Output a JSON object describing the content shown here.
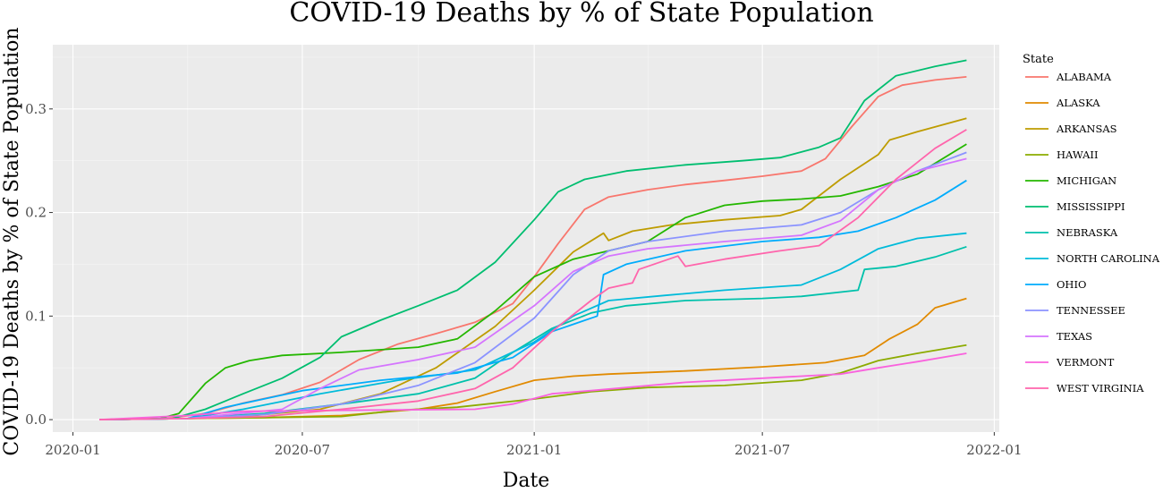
{
  "chart_data": {
    "type": "line",
    "title": "COVID-19 Deaths by % of State Population",
    "xlabel": "Date",
    "ylabel": "COVID-19 Deaths by % of State Population",
    "x_axis_type": "date",
    "xlim": [
      "2019-12-16",
      "2022-01-05"
    ],
    "ylim": [
      -0.012,
      0.362
    ],
    "x_ticks": [
      "2020-01",
      "2020-07",
      "2021-01",
      "2021-07",
      "2022-01"
    ],
    "y_ticks": [
      0.0,
      0.1,
      0.2,
      0.3
    ],
    "y_tick_labels": [
      "0.0",
      "0.1",
      "0.2",
      "0.3"
    ],
    "grid": true,
    "background": "#ebebeb",
    "legend": {
      "title": "State",
      "placement": "right"
    },
    "series": [
      {
        "name": "ALABAMA",
        "color": "#F8766D",
        "points": [
          [
            "2020-01-22",
            0
          ],
          [
            "2020-03-15",
            0.001
          ],
          [
            "2020-04-15",
            0.006
          ],
          [
            "2020-05-15",
            0.016
          ],
          [
            "2020-06-15",
            0.024
          ],
          [
            "2020-07-15",
            0.036
          ],
          [
            "2020-08-15",
            0.058
          ],
          [
            "2020-09-15",
            0.073
          ],
          [
            "2020-10-15",
            0.083
          ],
          [
            "2020-11-15",
            0.094
          ],
          [
            "2020-12-15",
            0.112
          ],
          [
            "2021-01-01",
            0.138
          ],
          [
            "2021-01-20",
            0.17
          ],
          [
            "2021-02-10",
            0.203
          ],
          [
            "2021-03-01",
            0.215
          ],
          [
            "2021-04-01",
            0.222
          ],
          [
            "2021-05-01",
            0.227
          ],
          [
            "2021-06-01",
            0.231
          ],
          [
            "2021-07-01",
            0.235
          ],
          [
            "2021-08-01",
            0.24
          ],
          [
            "2021-08-20",
            0.252
          ],
          [
            "2021-09-10",
            0.283
          ],
          [
            "2021-10-01",
            0.312
          ],
          [
            "2021-10-20",
            0.323
          ],
          [
            "2021-11-15",
            0.328
          ],
          [
            "2021-12-10",
            0.331
          ]
        ]
      },
      {
        "name": "ALASKA",
        "color": "#E18A00",
        "points": [
          [
            "2020-01-22",
            0
          ],
          [
            "2020-04-01",
            0.001
          ],
          [
            "2020-06-01",
            0.002
          ],
          [
            "2020-08-01",
            0.004
          ],
          [
            "2020-10-01",
            0.01
          ],
          [
            "2020-11-01",
            0.016
          ],
          [
            "2020-12-01",
            0.027
          ],
          [
            "2021-01-01",
            0.038
          ],
          [
            "2021-02-01",
            0.042
          ],
          [
            "2021-03-01",
            0.044
          ],
          [
            "2021-05-01",
            0.047
          ],
          [
            "2021-07-01",
            0.051
          ],
          [
            "2021-08-20",
            0.055
          ],
          [
            "2021-09-20",
            0.062
          ],
          [
            "2021-10-10",
            0.078
          ],
          [
            "2021-11-01",
            0.092
          ],
          [
            "2021-11-15",
            0.108
          ],
          [
            "2021-12-10",
            0.117
          ]
        ]
      },
      {
        "name": "ARKANSAS",
        "color": "#BE9C00",
        "points": [
          [
            "2020-01-22",
            0
          ],
          [
            "2020-04-01",
            0.001
          ],
          [
            "2020-05-15",
            0.003
          ],
          [
            "2020-07-15",
            0.01
          ],
          [
            "2020-09-01",
            0.025
          ],
          [
            "2020-10-15",
            0.05
          ],
          [
            "2020-12-01",
            0.09
          ],
          [
            "2021-01-01",
            0.125
          ],
          [
            "2021-02-01",
            0.162
          ],
          [
            "2021-02-25",
            0.18
          ],
          [
            "2021-03-01",
            0.173
          ],
          [
            "2021-03-20",
            0.182
          ],
          [
            "2021-04-20",
            0.188
          ],
          [
            "2021-06-01",
            0.193
          ],
          [
            "2021-07-15",
            0.197
          ],
          [
            "2021-08-01",
            0.203
          ],
          [
            "2021-09-01",
            0.232
          ],
          [
            "2021-10-01",
            0.256
          ],
          [
            "2021-10-10",
            0.27
          ],
          [
            "2021-11-01",
            0.278
          ],
          [
            "2021-12-10",
            0.291
          ]
        ]
      },
      {
        "name": "HAWAII",
        "color": "#8CAB00",
        "points": [
          [
            "2020-01-22",
            0
          ],
          [
            "2020-04-01",
            0.001
          ],
          [
            "2020-06-01",
            0.002
          ],
          [
            "2020-08-01",
            0.003
          ],
          [
            "2020-09-15",
            0.009
          ],
          [
            "2020-11-01",
            0.012
          ],
          [
            "2021-01-01",
            0.02
          ],
          [
            "2021-02-15",
            0.027
          ],
          [
            "2021-04-01",
            0.031
          ],
          [
            "2021-06-01",
            0.033
          ],
          [
            "2021-08-01",
            0.038
          ],
          [
            "2021-09-01",
            0.045
          ],
          [
            "2021-10-01",
            0.057
          ],
          [
            "2021-11-01",
            0.064
          ],
          [
            "2021-12-10",
            0.072
          ]
        ]
      },
      {
        "name": "MICHIGAN",
        "color": "#24B700",
        "points": [
          [
            "2020-01-22",
            0
          ],
          [
            "2020-03-10",
            0.001
          ],
          [
            "2020-03-25",
            0.006
          ],
          [
            "2020-04-15",
            0.035
          ],
          [
            "2020-05-01",
            0.05
          ],
          [
            "2020-05-20",
            0.057
          ],
          [
            "2020-06-15",
            0.062
          ],
          [
            "2020-08-01",
            0.065
          ],
          [
            "2020-10-01",
            0.07
          ],
          [
            "2020-11-01",
            0.078
          ],
          [
            "2020-12-01",
            0.105
          ],
          [
            "2021-01-01",
            0.138
          ],
          [
            "2021-02-01",
            0.155
          ],
          [
            "2021-03-01",
            0.163
          ],
          [
            "2021-04-01",
            0.172
          ],
          [
            "2021-05-01",
            0.195
          ],
          [
            "2021-06-01",
            0.207
          ],
          [
            "2021-07-01",
            0.211
          ],
          [
            "2021-08-01",
            0.213
          ],
          [
            "2021-09-01",
            0.216
          ],
          [
            "2021-10-01",
            0.225
          ],
          [
            "2021-11-01",
            0.237
          ],
          [
            "2021-12-10",
            0.266
          ]
        ]
      },
      {
        "name": "MISSISSIPPI",
        "color": "#00BE70",
        "points": [
          [
            "2020-01-22",
            0
          ],
          [
            "2020-03-20",
            0.001
          ],
          [
            "2020-04-15",
            0.01
          ],
          [
            "2020-05-15",
            0.025
          ],
          [
            "2020-06-15",
            0.04
          ],
          [
            "2020-07-15",
            0.06
          ],
          [
            "2020-08-01",
            0.08
          ],
          [
            "2020-09-01",
            0.096
          ],
          [
            "2020-10-01",
            0.11
          ],
          [
            "2020-11-01",
            0.125
          ],
          [
            "2020-12-01",
            0.152
          ],
          [
            "2021-01-01",
            0.193
          ],
          [
            "2021-01-20",
            0.22
          ],
          [
            "2021-02-10",
            0.232
          ],
          [
            "2021-03-15",
            0.24
          ],
          [
            "2021-05-01",
            0.246
          ],
          [
            "2021-06-15",
            0.25
          ],
          [
            "2021-07-15",
            0.253
          ],
          [
            "2021-08-15",
            0.263
          ],
          [
            "2021-09-01",
            0.272
          ],
          [
            "2021-09-20",
            0.308
          ],
          [
            "2021-10-15",
            0.332
          ],
          [
            "2021-11-15",
            0.341
          ],
          [
            "2021-12-10",
            0.347
          ]
        ]
      },
      {
        "name": "NEBRASKA",
        "color": "#00C1AB",
        "points": [
          [
            "2020-01-22",
            0
          ],
          [
            "2020-04-01",
            0.001
          ],
          [
            "2020-06-01",
            0.006
          ],
          [
            "2020-08-01",
            0.015
          ],
          [
            "2020-10-01",
            0.025
          ],
          [
            "2020-11-15",
            0.04
          ],
          [
            "2020-12-15",
            0.065
          ],
          [
            "2021-01-15",
            0.088
          ],
          [
            "2021-02-15",
            0.103
          ],
          [
            "2021-03-15",
            0.11
          ],
          [
            "2021-05-01",
            0.115
          ],
          [
            "2021-07-01",
            0.117
          ],
          [
            "2021-08-01",
            0.119
          ],
          [
            "2021-09-15",
            0.125
          ],
          [
            "2021-09-20",
            0.145
          ],
          [
            "2021-10-15",
            0.148
          ],
          [
            "2021-11-15",
            0.157
          ],
          [
            "2021-12-10",
            0.167
          ]
        ]
      },
      {
        "name": "NORTH CAROLINA",
        "color": "#00BBDA",
        "points": [
          [
            "2020-01-22",
            0
          ],
          [
            "2020-04-01",
            0.001
          ],
          [
            "2020-05-15",
            0.01
          ],
          [
            "2020-07-15",
            0.025
          ],
          [
            "2020-09-15",
            0.038
          ],
          [
            "2020-11-15",
            0.048
          ],
          [
            "2021-01-01",
            0.075
          ],
          [
            "2021-02-01",
            0.1
          ],
          [
            "2021-03-01",
            0.115
          ],
          [
            "2021-04-15",
            0.12
          ],
          [
            "2021-06-01",
            0.125
          ],
          [
            "2021-08-01",
            0.13
          ],
          [
            "2021-09-01",
            0.145
          ],
          [
            "2021-10-01",
            0.165
          ],
          [
            "2021-11-01",
            0.175
          ],
          [
            "2021-12-10",
            0.18
          ]
        ]
      },
      {
        "name": "OHIO",
        "color": "#00ACFC",
        "points": [
          [
            "2020-01-22",
            0
          ],
          [
            "2020-04-01",
            0.001
          ],
          [
            "2020-05-01",
            0.012
          ],
          [
            "2020-07-01",
            0.028
          ],
          [
            "2020-09-01",
            0.038
          ],
          [
            "2020-11-01",
            0.045
          ],
          [
            "2020-12-15",
            0.06
          ],
          [
            "2021-01-15",
            0.085
          ],
          [
            "2021-02-20",
            0.1
          ],
          [
            "2021-02-25",
            0.14
          ],
          [
            "2021-03-15",
            0.15
          ],
          [
            "2021-05-01",
            0.163
          ],
          [
            "2021-07-01",
            0.172
          ],
          [
            "2021-08-15",
            0.176
          ],
          [
            "2021-09-15",
            0.182
          ],
          [
            "2021-10-15",
            0.195
          ],
          [
            "2021-11-15",
            0.212
          ],
          [
            "2021-12-10",
            0.231
          ]
        ]
      },
      {
        "name": "TENNESSEE",
        "color": "#8B93FF",
        "points": [
          [
            "2020-01-22",
            0
          ],
          [
            "2020-04-01",
            0.001
          ],
          [
            "2020-06-01",
            0.005
          ],
          [
            "2020-08-01",
            0.015
          ],
          [
            "2020-10-01",
            0.033
          ],
          [
            "2020-11-15",
            0.055
          ],
          [
            "2021-01-01",
            0.098
          ],
          [
            "2021-02-01",
            0.14
          ],
          [
            "2021-03-01",
            0.163
          ],
          [
            "2021-04-01",
            0.172
          ],
          [
            "2021-06-01",
            0.182
          ],
          [
            "2021-08-01",
            0.188
          ],
          [
            "2021-09-01",
            0.2
          ],
          [
            "2021-10-01",
            0.222
          ],
          [
            "2021-11-01",
            0.24
          ],
          [
            "2021-12-10",
            0.258
          ]
        ]
      },
      {
        "name": "TEXAS",
        "color": "#D575FE",
        "points": [
          [
            "2020-01-22",
            0
          ],
          [
            "2020-04-01",
            0.001
          ],
          [
            "2020-06-15",
            0.01
          ],
          [
            "2020-07-15",
            0.03
          ],
          [
            "2020-08-15",
            0.048
          ],
          [
            "2020-10-01",
            0.058
          ],
          [
            "2020-11-15",
            0.07
          ],
          [
            "2021-01-01",
            0.11
          ],
          [
            "2021-02-01",
            0.143
          ],
          [
            "2021-03-01",
            0.158
          ],
          [
            "2021-04-01",
            0.165
          ],
          [
            "2021-06-01",
            0.172
          ],
          [
            "2021-08-01",
            0.178
          ],
          [
            "2021-09-01",
            0.192
          ],
          [
            "2021-10-01",
            0.222
          ],
          [
            "2021-11-01",
            0.24
          ],
          [
            "2021-12-10",
            0.252
          ]
        ]
      },
      {
        "name": "VERMONT",
        "color": "#F962DD",
        "points": [
          [
            "2020-01-22",
            0
          ],
          [
            "2020-04-01",
            0.004
          ],
          [
            "2020-05-15",
            0.008
          ],
          [
            "2020-08-01",
            0.009
          ],
          [
            "2020-11-15",
            0.01
          ],
          [
            "2020-12-15",
            0.015
          ],
          [
            "2021-01-15",
            0.025
          ],
          [
            "2021-02-15",
            0.028
          ],
          [
            "2021-05-01",
            0.036
          ],
          [
            "2021-07-01",
            0.04
          ],
          [
            "2021-09-01",
            0.044
          ],
          [
            "2021-10-01",
            0.05
          ],
          [
            "2021-11-01",
            0.056
          ],
          [
            "2021-12-10",
            0.064
          ]
        ]
      },
      {
        "name": "WEST VIRGINIA",
        "color": "#FF65AC",
        "points": [
          [
            "2020-01-22",
            0
          ],
          [
            "2020-04-01",
            0.001
          ],
          [
            "2020-06-01",
            0.003
          ],
          [
            "2020-08-01",
            0.01
          ],
          [
            "2020-10-01",
            0.018
          ],
          [
            "2020-11-15",
            0.03
          ],
          [
            "2020-12-15",
            0.05
          ],
          [
            "2021-01-15",
            0.085
          ],
          [
            "2021-02-15",
            0.115
          ],
          [
            "2021-03-01",
            0.127
          ],
          [
            "2021-03-20",
            0.132
          ],
          [
            "2021-03-25",
            0.145
          ],
          [
            "2021-04-25",
            0.158
          ],
          [
            "2021-05-01",
            0.148
          ],
          [
            "2021-06-01",
            0.155
          ],
          [
            "2021-07-15",
            0.163
          ],
          [
            "2021-08-15",
            0.168
          ],
          [
            "2021-09-15",
            0.195
          ],
          [
            "2021-10-15",
            0.232
          ],
          [
            "2021-11-15",
            0.262
          ],
          [
            "2021-12-10",
            0.28
          ]
        ]
      }
    ]
  }
}
